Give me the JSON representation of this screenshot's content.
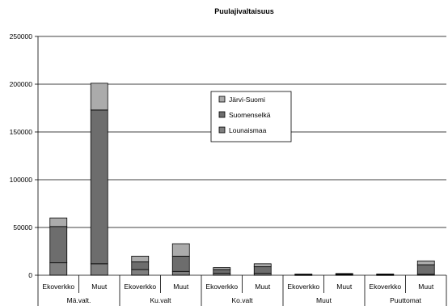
{
  "chart_data": {
    "type": "bar",
    "stacked": true,
    "title": "Puulajivaltaisuus",
    "xlabel": "",
    "ylabel": "",
    "ylim": [
      0,
      250000
    ],
    "yticks": [
      0,
      50000,
      100000,
      150000,
      200000,
      250000
    ],
    "ytick_labels": [
      "0",
      "50000",
      "100000",
      "150000",
      "200000",
      "250000"
    ],
    "grid": "horizontal",
    "legend": "center",
    "groups": [
      "Mä.valt.",
      "Ku.valt",
      "Ko.valt",
      "Muut",
      "Puuttomat"
    ],
    "categories": [
      "Ekoverkko",
      "Muut",
      "Ekoverkko",
      "Muut",
      "Ekoverkko",
      "Muut",
      "Ekoverkko",
      "Muut",
      "Ekoverkko",
      "Muut"
    ],
    "series": [
      {
        "name": "Lounaismaa",
        "color": "#7f7f7f",
        "values": [
          13000,
          12000,
          6000,
          4000,
          2000,
          2000,
          300,
          400,
          300,
          1000
        ]
      },
      {
        "name": "Suomenselkä",
        "color": "#6d6d6d",
        "values": [
          38000,
          161000,
          8000,
          16000,
          4000,
          7000,
          400,
          700,
          500,
          10000
        ]
      },
      {
        "name": "Järvi-Suomi",
        "color": "#ababab",
        "values": [
          9000,
          28000,
          6000,
          13000,
          2000,
          3000,
          500,
          700,
          500,
          4000
        ]
      }
    ]
  }
}
